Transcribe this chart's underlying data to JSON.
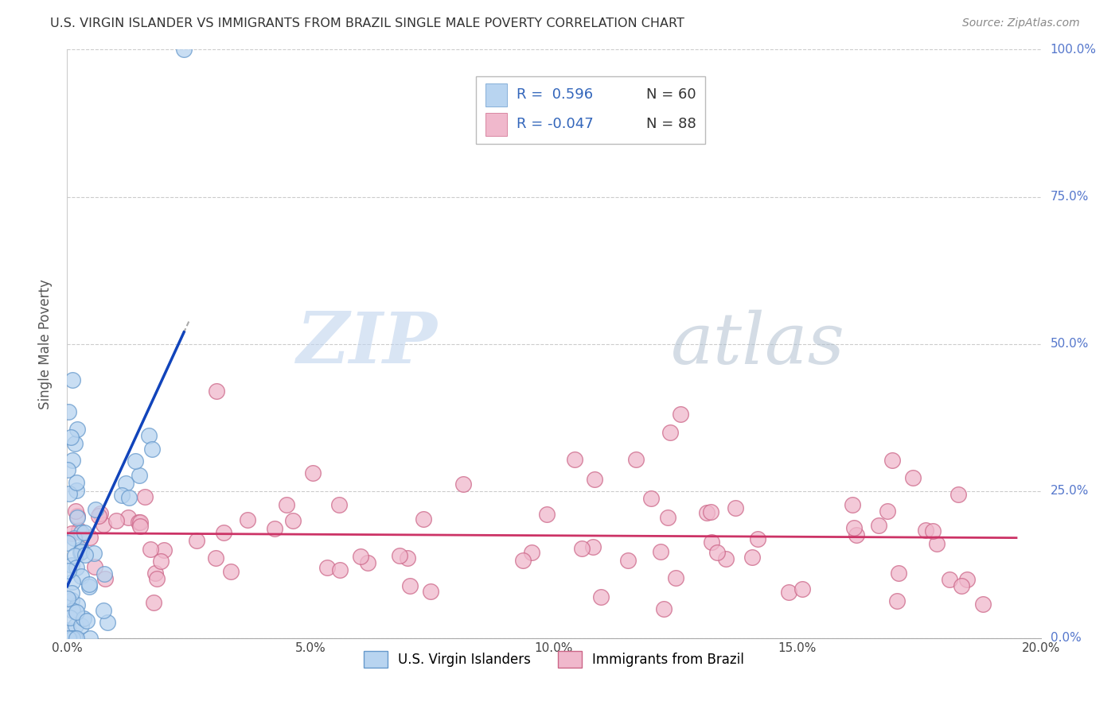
{
  "title": "U.S. VIRGIN ISLANDER VS IMMIGRANTS FROM BRAZIL SINGLE MALE POVERTY CORRELATION CHART",
  "source": "Source: ZipAtlas.com",
  "ylabel": "Single Male Poverty",
  "watermark_zip": "ZIP",
  "watermark_atlas": "atlas",
  "xlim": [
    0.0,
    0.2
  ],
  "ylim": [
    0.0,
    1.0
  ],
  "xticks": [
    0.0,
    0.05,
    0.1,
    0.15,
    0.2
  ],
  "xtick_labels": [
    "0.0%",
    "5.0%",
    "10.0%",
    "15.0%",
    "20.0%"
  ],
  "yticks": [
    0.0,
    0.25,
    0.5,
    0.75,
    1.0
  ],
  "ytick_labels": [
    "0.0%",
    "25.0%",
    "50.0%",
    "75.0%",
    "100.0%"
  ],
  "series1_color": "#b8d4f0",
  "series2_color": "#f0b8cc",
  "series1_edge": "#6699cc",
  "series2_edge": "#cc6688",
  "series1_label": "U.S. Virgin Islanders",
  "series2_label": "Immigrants from Brazil",
  "line1_color": "#1144bb",
  "line2_color": "#cc3366",
  "legend_r1": "R =  0.596",
  "legend_n1": "N = 60",
  "legend_r2": "R = -0.047",
  "legend_n2": "N = 88",
  "seed": 42,
  "background_color": "#ffffff",
  "grid_color": "#cccccc",
  "ytick_color": "#5577cc",
  "xtick_color": "#444444"
}
